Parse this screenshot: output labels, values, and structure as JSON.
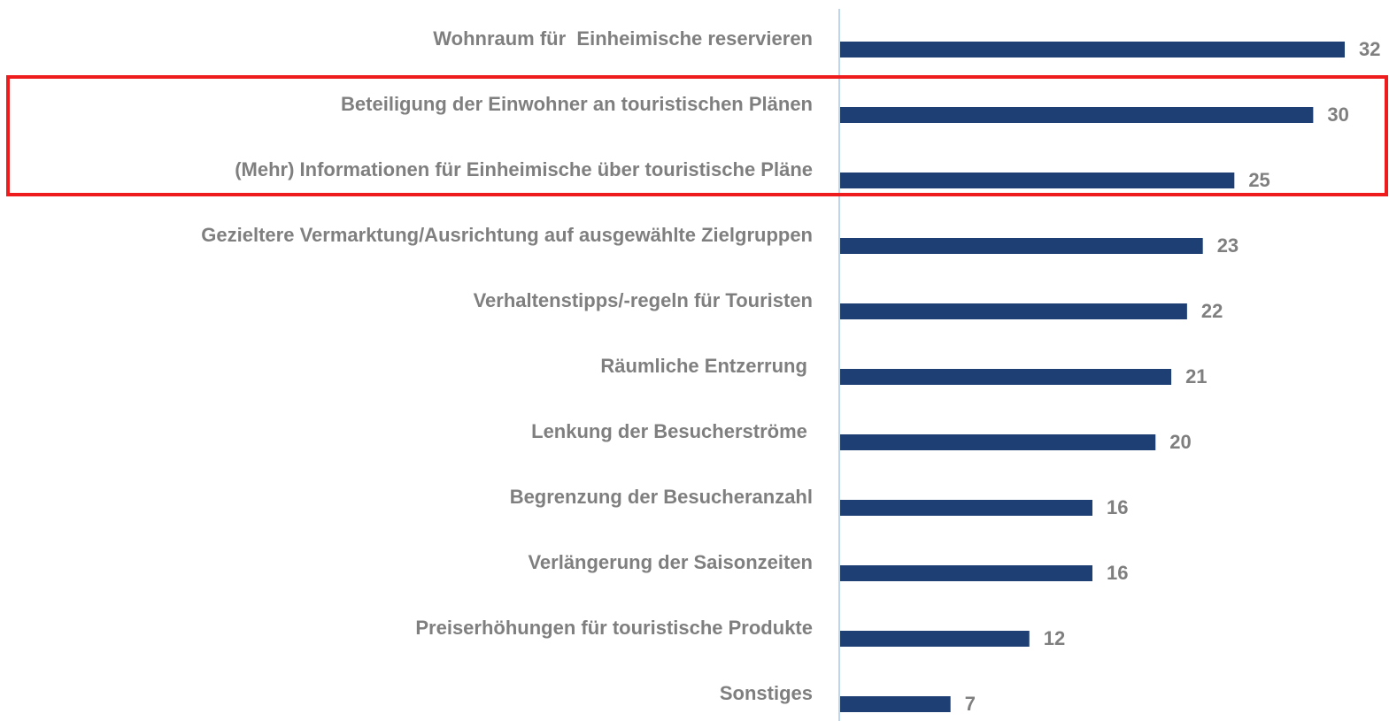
{
  "chart_data": {
    "type": "bar",
    "orientation": "horizontal",
    "categories": [
      "Wohnraum für  Einheimische reservieren",
      "Beteiligung der Einwohner an touristischen Plänen",
      "(Mehr) Informationen für Einheimische über touristische Pläne",
      "Gezieltere Vermarktung/Ausrichtung auf ausgewählte Zielgruppen",
      "Verhaltenstipps/-regeln für Touristen",
      "Räumliche Entzerrung ",
      "Lenkung der Besucherströme ",
      "Begrenzung der Besucheranzahl",
      "Verlängerung der Saisonzeiten",
      "Preiserhöhungen für touristische Produkte",
      "Sonstiges"
    ],
    "values": [
      32,
      30,
      25,
      23,
      22,
      21,
      20,
      16,
      16,
      12,
      7
    ],
    "color": "#1d3f74"
  }
}
